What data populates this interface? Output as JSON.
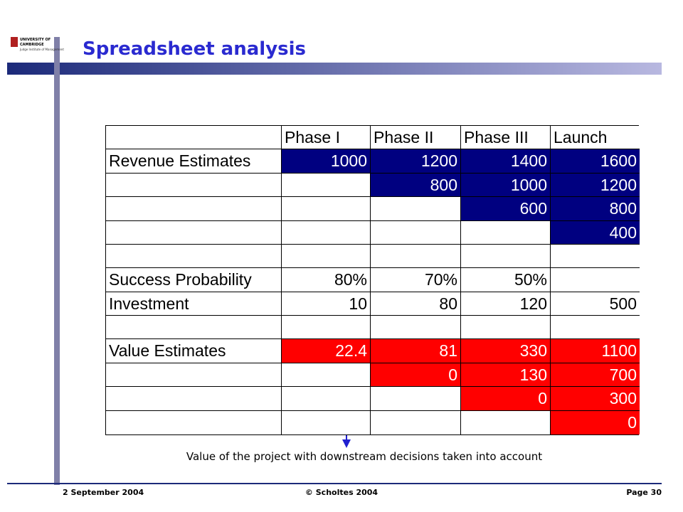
{
  "header": {
    "title": "Spreadsheet analysis",
    "logo": {
      "line1": "UNIVERSITY OF",
      "line2": "CAMBRIDGE",
      "line3": "Judge Institute of Management"
    }
  },
  "table": {
    "columns": [
      null,
      "Phase I",
      "Phase II",
      "Phase III",
      "Launch"
    ],
    "rows": [
      [
        "Revenue Estimates",
        "1000",
        "1200",
        "1400",
        "1600"
      ],
      [
        null,
        null,
        "800",
        "1000",
        "1200"
      ],
      [
        null,
        null,
        null,
        "600",
        "800"
      ],
      [
        null,
        null,
        null,
        null,
        "400"
      ],
      [
        null,
        null,
        null,
        null,
        null
      ],
      [
        "Success Probability",
        "80%",
        "70%",
        "50%",
        null
      ],
      [
        "Investment",
        "10",
        "80",
        "120",
        "500"
      ],
      [
        null,
        null,
        null,
        null,
        null
      ],
      [
        "Value Estimates",
        "22.4",
        "81",
        "330",
        "1100"
      ],
      [
        null,
        null,
        "0",
        "130",
        "700"
      ],
      [
        null,
        null,
        null,
        "0",
        "300"
      ],
      [
        null,
        null,
        null,
        null,
        "0"
      ]
    ],
    "blue_fill": "#000080",
    "red_fill": "#ff0000"
  },
  "annotation": "Value of the project with downstream decisions taken into account",
  "footer": {
    "date": "2 September 2004",
    "copyright": "© Scholtes 2004",
    "page": "Page 30"
  }
}
